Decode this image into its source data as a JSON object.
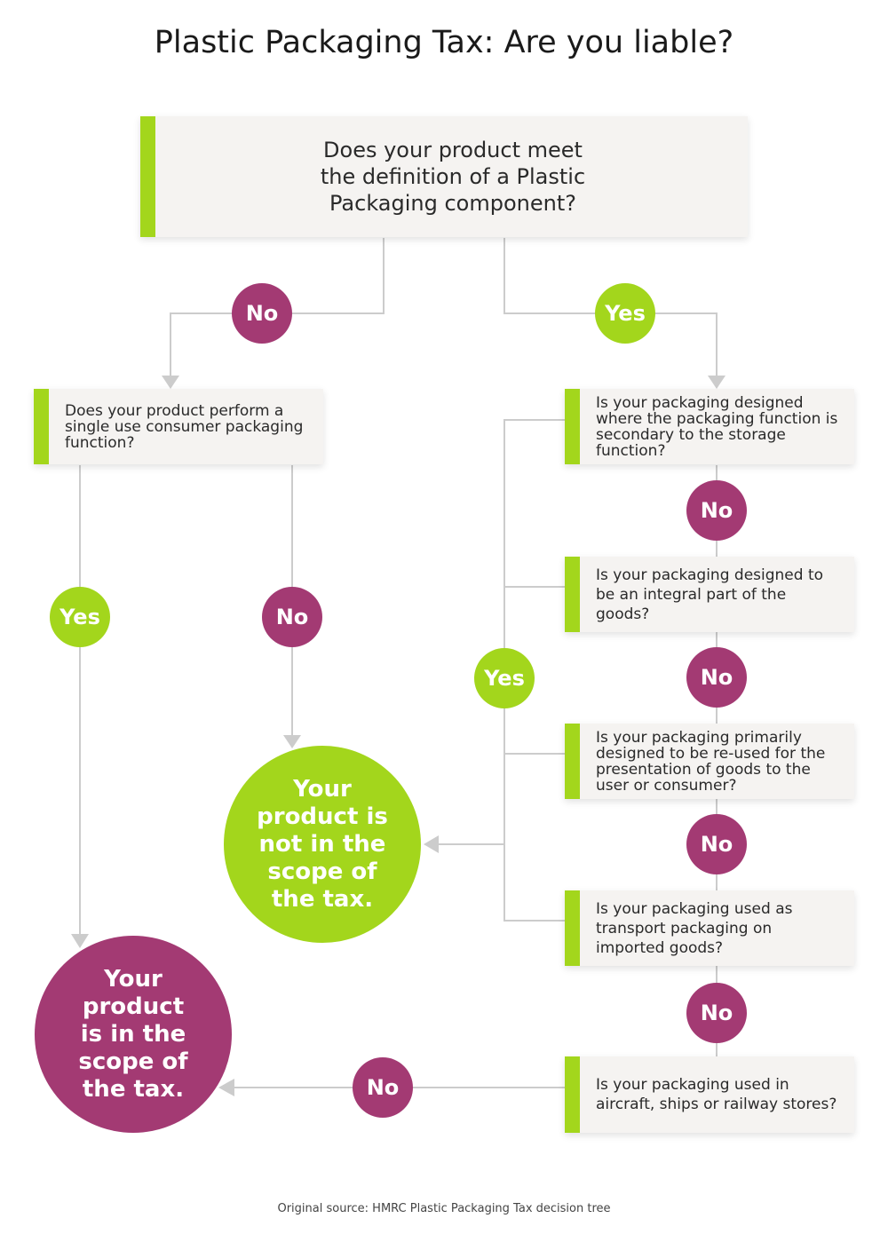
{
  "title": "Plastic Packaging Tax: Are you liable?",
  "colors": {
    "yes": "#a3d61c",
    "no": "#a33a73",
    "box": "#f5f3f1",
    "connector": "#cccccc"
  },
  "questions": {
    "q1": "Does your product meet the definition of a Plastic Packaging component?",
    "q2": "Does your product perform a single use consumer packaging function?",
    "q3": "Is your packaging designed where the packaging function is secondary to the storage function?",
    "q4": "Is your packaging designed to be an integral part of the goods?",
    "q5": "Is your packaging primarily designed to be re-used for the presentation of goods to the user or consumer?",
    "q6": "Is your packaging used as transport packaging on imported goods?",
    "q7": "Is your packaging used in aircraft, ships or railway stores?"
  },
  "answers": {
    "yes": "Yes",
    "no": "No"
  },
  "outcomes": {
    "not_in_scope": "Your product is not in the scope of the tax.",
    "in_scope": "Your product is in the scope of the tax."
  },
  "footer": "Original source: HMRC Plastic Packaging Tax decision tree"
}
